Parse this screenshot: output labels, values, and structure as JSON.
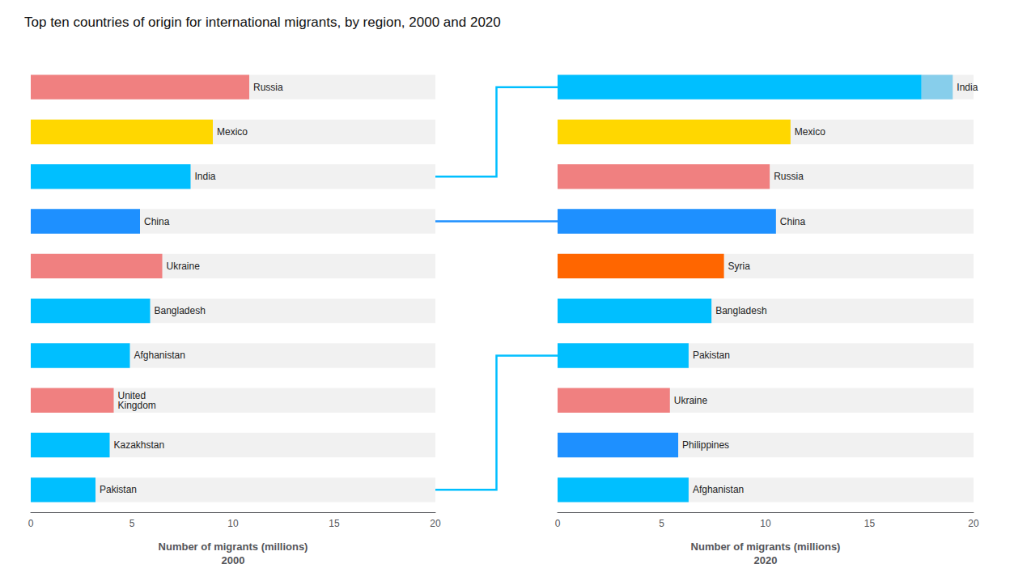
{
  "chart_data": [
    {
      "type": "bar",
      "orientation": "horizontal",
      "title": "Top ten countries of origin for international migrants, by region, 2000 and 2020",
      "xlabel": "Number of migrants (millions)\n2000",
      "categories": [
        "Russia",
        "Mexico",
        "India",
        "China",
        "Ukraine",
        "Bangladesh",
        "Afghanistan",
        "United\nKingdom",
        "Kazakhstan",
        "Pakistan"
      ],
      "values": [
        10.8,
        9.0,
        7.9,
        5.4,
        6.5,
        5.9,
        4.9,
        4.1,
        3.9,
        3.2
      ],
      "colors": [
        "#F08080",
        "#FFD700",
        "#00BFFF",
        "#1E90FF",
        "#F08080",
        "#00BFFF",
        "#00BFFF",
        "#F08080",
        "#00BFFF",
        "#00BFFF"
      ],
      "xlim": [
        0,
        20
      ],
      "xticks": [
        0,
        5,
        10,
        15,
        20
      ],
      "grid": false,
      "tick_labels": "x"
    },
    {
      "type": "bar",
      "orientation": "horizontal",
      "stacked": true,
      "xlabel": "Number of migrants (millions)\n2020",
      "categories": [
        "India",
        "Mexico",
        "Russia",
        "China",
        "Syria",
        "Bangladesh",
        "Pakistan",
        "Ukraine",
        "Philippines",
        "Afghanistan"
      ],
      "series": [
        {
          "values": [
            17.5,
            11.2,
            10.2,
            10.5,
            8.0,
            7.4,
            6.3,
            5.4,
            5.8,
            6.3
          ],
          "colors": [
            "#00BFFF",
            "#FFD700",
            "#F08080",
            "#1E90FF",
            "#FF6600",
            "#00BFFF",
            "#00BFFF",
            "#F08080",
            "#1E90FF",
            "#00BFFF"
          ]
        },
        {
          "values": [
            1.5,
            0,
            0,
            0,
            0,
            0,
            0,
            0,
            0,
            0
          ],
          "color": "#87CEEB"
        }
      ],
      "xlim": [
        0,
        20
      ],
      "xticks": [
        0,
        5,
        10,
        15,
        20
      ],
      "grid": false,
      "tick_labels": "x"
    }
  ],
  "connectors": [
    {
      "from": "India",
      "to": "India",
      "color": "#00BFFF"
    },
    {
      "from": "China",
      "to": "China",
      "color": "#1E90FF"
    },
    {
      "from": "Pakistan",
      "to": "Pakistan",
      "color": "#00BFFF"
    }
  ]
}
